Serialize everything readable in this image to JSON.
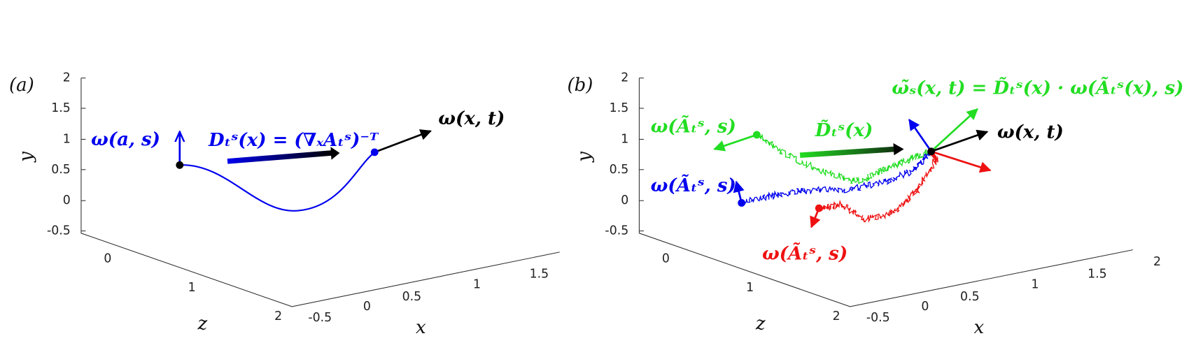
{
  "panels": [
    {
      "label": "(a)",
      "yticks": [
        "2",
        "1.5",
        "1",
        "0.5",
        "0",
        "-0.5"
      ],
      "zticks": [
        "0",
        "1",
        "2"
      ],
      "xticks": [
        "-0.5",
        "0",
        "0.5",
        "1",
        "1.5"
      ],
      "axis_labels": {
        "x": "x",
        "y": "y",
        "z": "z"
      },
      "annotations": [
        "ω(a, s)",
        "Dₜˢ(x) = (∇ₓAₜˢ)⁻ᵀ",
        "ω(x, t)"
      ]
    },
    {
      "label": "(b)",
      "yticks": [
        "2",
        "1.5",
        "1",
        "0.5",
        "0",
        "-0.5"
      ],
      "zticks": [
        "0",
        "1",
        "2"
      ],
      "xticks": [
        "-0.5",
        "0",
        "0.5",
        "1",
        "1.5",
        "2"
      ],
      "axis_labels": {
        "x": "x",
        "y": "y",
        "z": "z"
      },
      "annotations": [
        "ω(Ãₜˢ, s)",
        "ω(Ãₜˢ, s)",
        "ω(Ãₜˢ, s)",
        "D̃ₜˢ(x)",
        "ω̃ₛ(x, t) = D̃ₜˢ(x) · ω(Ãₜˢ(x), s)",
        "ω(x, t)"
      ]
    }
  ]
}
